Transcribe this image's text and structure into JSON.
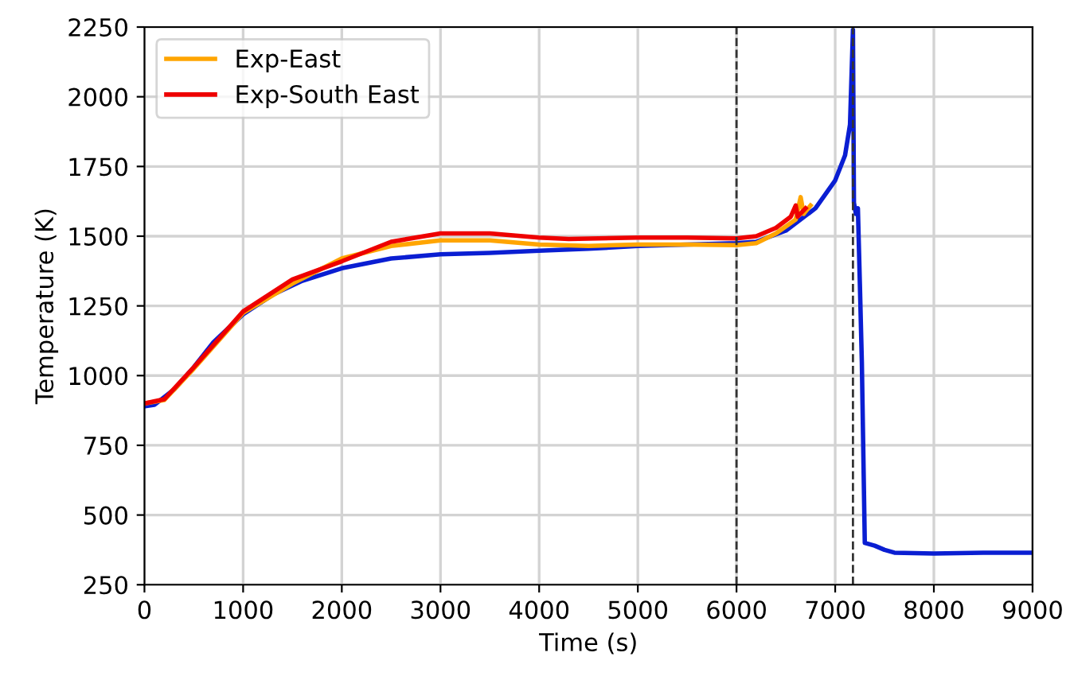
{
  "chart_data": {
    "type": "line",
    "xlabel": "Time (s)",
    "ylabel": "Temperature (K)",
    "xlim": [
      0,
      9000
    ],
    "xticks": [
      0,
      1000,
      2000,
      3000,
      4000,
      5000,
      6000,
      7000,
      8000,
      9000
    ],
    "ylim": [
      250,
      2250
    ],
    "yticks": [
      250,
      500,
      750,
      1000,
      1250,
      1500,
      1750,
      2000,
      2250
    ],
    "grid": true,
    "legend": "top left",
    "line_style": "solid",
    "marker": "none",
    "ref_lines": [
      {
        "axis": "x",
        "value": 6000,
        "color": "#333333",
        "line_style": "dashed"
      },
      {
        "axis": "x",
        "value": 7180,
        "color": "#333333",
        "line_style": "dashed"
      }
    ],
    "series": [
      {
        "color": "#0a1ed2",
        "x": [
          0,
          100,
          300,
          500,
          700,
          1000,
          1300,
          1600,
          2000,
          2500,
          3000,
          3500,
          4000,
          4500,
          5000,
          5500,
          6000,
          6200,
          6500,
          6800,
          7000,
          7100,
          7150,
          7180,
          7190,
          7210,
          7230,
          7250,
          7270,
          7300,
          7400,
          7500,
          7600,
          8000,
          8500,
          9000
        ],
        "values": [
          890,
          895,
          950,
          1030,
          1120,
          1220,
          1290,
          1340,
          1385,
          1420,
          1435,
          1440,
          1448,
          1455,
          1465,
          1470,
          1475,
          1480,
          1520,
          1600,
          1700,
          1790,
          1900,
          2240,
          1620,
          1580,
          1600,
          1330,
          1050,
          400,
          390,
          375,
          365,
          362,
          365,
          365
        ]
      },
      {
        "name": "Exp-East",
        "color": "#ffa500",
        "x": [
          0,
          200,
          500,
          1000,
          1500,
          2000,
          2500,
          3000,
          3500,
          4000,
          4500,
          5000,
          5500,
          6000,
          6200,
          6400,
          6600,
          6650,
          6680,
          6750
        ],
        "values": [
          900,
          912,
          1025,
          1225,
          1330,
          1420,
          1465,
          1485,
          1485,
          1470,
          1465,
          1470,
          1470,
          1468,
          1475,
          1510,
          1560,
          1640,
          1580,
          1610
        ]
      },
      {
        "name": "Exp-South East",
        "color": "#ee0000",
        "x": [
          0,
          200,
          500,
          1000,
          1500,
          2000,
          2500,
          3000,
          3500,
          4000,
          4300,
          5000,
          5500,
          6000,
          6200,
          6400,
          6550,
          6600,
          6620,
          6700
        ],
        "values": [
          900,
          915,
          1030,
          1230,
          1345,
          1410,
          1480,
          1510,
          1510,
          1495,
          1490,
          1495,
          1495,
          1492,
          1500,
          1530,
          1570,
          1610,
          1570,
          1600
        ]
      }
    ]
  }
}
